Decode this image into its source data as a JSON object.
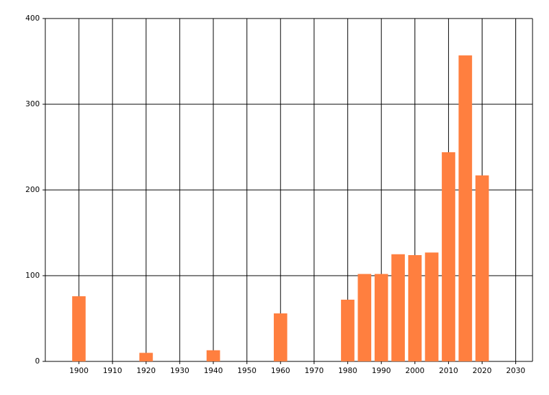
{
  "chart_data": {
    "type": "bar",
    "x": [
      1900,
      1920,
      1940,
      1960,
      1980,
      1985,
      1990,
      1995,
      2000,
      2005,
      2010,
      2015,
      2020
    ],
    "values": [
      76,
      10,
      13,
      56,
      72,
      102,
      102,
      125,
      124,
      127,
      244,
      357,
      217
    ],
    "color": "#ff7f3f",
    "xlim": [
      1890,
      2035
    ],
    "xticks": [
      1900,
      1910,
      1920,
      1930,
      1940,
      1950,
      1960,
      1970,
      1980,
      1990,
      2000,
      2010,
      2020,
      2030
    ],
    "ylim": [
      0,
      400
    ],
    "yticks": [
      0,
      100,
      200,
      300,
      400
    ],
    "grid": true
  }
}
